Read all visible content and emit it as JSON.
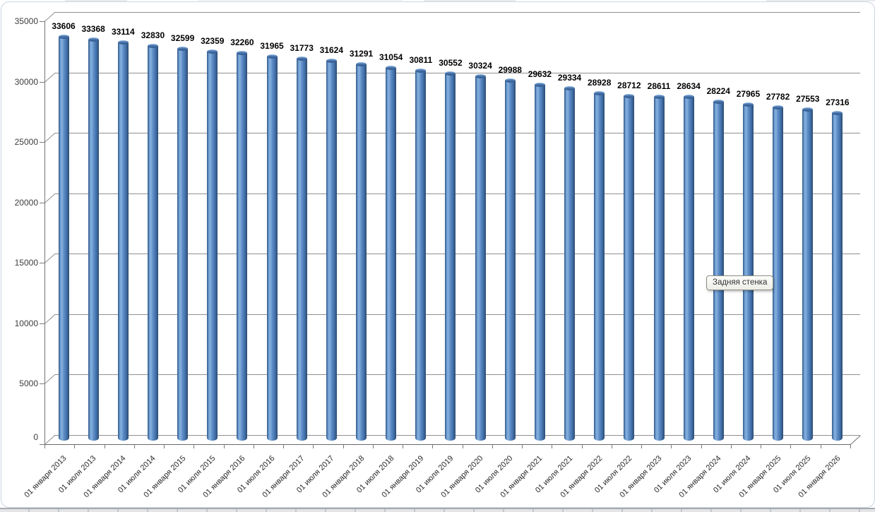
{
  "window": {
    "context": "spreadsheet-chart"
  },
  "chart_data": {
    "type": "bar",
    "subtype": "3d-cylinder",
    "title": "",
    "xlabel": "",
    "ylabel": "",
    "categories": [
      "01 января 2013",
      "01 июля 2013",
      "01 января 2014",
      "01 июля 2014",
      "01 января 2015",
      "01 июля 2015",
      "01 января 2016",
      "01 июля 2016",
      "01 января 2017",
      "01 июля 2017",
      "01 января 2018",
      "01 июля 2018",
      "01 января 2019",
      "01 июля 2019",
      "01 января 2020",
      "01 июля 2020",
      "01 января 2021",
      "01 июля 2021",
      "01 января 2022",
      "01 июля 2022",
      "01 января 2023",
      "01 июля 2023",
      "01 января 2024",
      "01 июля 2024",
      "01 января 2025",
      "01 июля 2025",
      "01 января 2026"
    ],
    "series": [
      {
        "name": "",
        "values": [
          33606,
          33368,
          33114,
          32830,
          32599,
          32359,
          32260,
          31965,
          31773,
          31624,
          31291,
          31054,
          30811,
          30552,
          30324,
          29988,
          29632,
          29334,
          28928,
          28712,
          28611,
          28634,
          28224,
          27965,
          27782,
          27553,
          27316
        ]
      }
    ],
    "data_labels": true,
    "ylim": [
      0,
      35000
    ],
    "ytick_step": 5000,
    "yticks": [
      "0",
      "5000",
      "10000",
      "15000",
      "20000",
      "25000",
      "30000",
      "35000"
    ],
    "grid": "horizontal",
    "legend": "none"
  },
  "tooltip": {
    "text": "Задняя стенка"
  },
  "colors": {
    "bar_fill": "#4F81BD",
    "bar_highlight": "#87B0DD",
    "bar_shadow": "#2F5880",
    "grid_line": "#909090",
    "axis_line": "#6E6E6E",
    "value_label_text": "#000000",
    "axis_text": "#3D3D3D",
    "tooltip_bg": "#F4F4EE",
    "tooltip_border": "#8F8F85",
    "frame_border": "#C9D5E0"
  }
}
